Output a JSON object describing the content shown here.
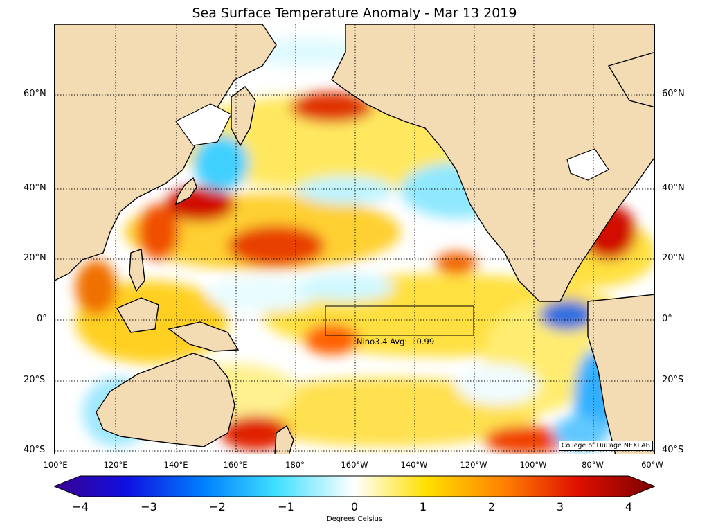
{
  "title": "Sea Surface Temperature Anomaly - Mar 13 2019",
  "credit": "College of DuPage NEXLAB",
  "nino_label": "Nino3.4 Avg: +0.99",
  "lat_labels": [
    "60°N",
    "40°N",
    "20°N",
    "0°",
    "20°S",
    "40°S"
  ],
  "lon_labels": [
    "100°E",
    "120°E",
    "140°E",
    "160°E",
    "180°",
    "160°W",
    "140°W",
    "120°W",
    "100°W",
    "80°W",
    "60°W"
  ],
  "colorbar": {
    "ticks": [
      "−4",
      "−3",
      "−2",
      "−1",
      "0",
      "1",
      "2",
      "3",
      "4"
    ],
    "label": "Degrees Celsius",
    "range": [
      -4,
      4
    ]
  },
  "colors": {
    "land": "#f3dbb4",
    "neutral": "#ffffff",
    "warm": "#ffe000",
    "hot": "#e02000",
    "cold": "#00a0ff",
    "very_cold": "#1020c0"
  }
}
